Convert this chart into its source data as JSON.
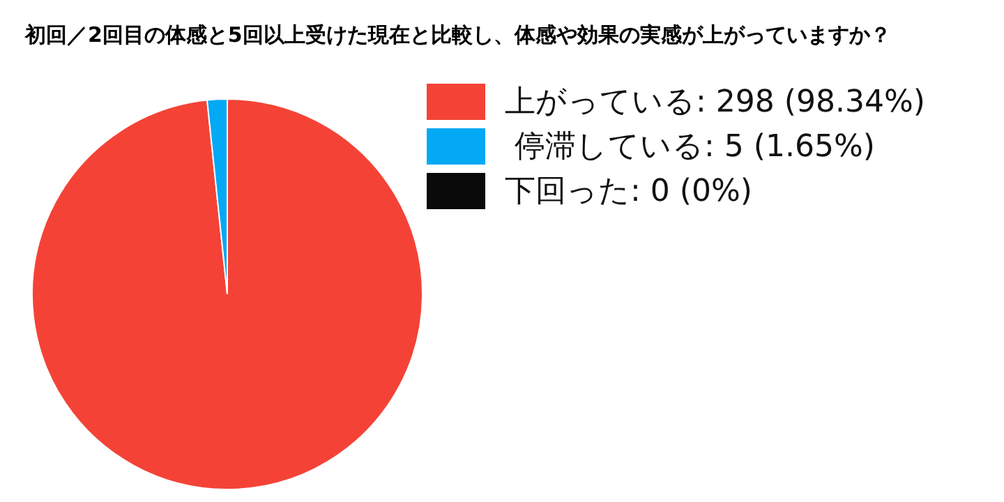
{
  "chart_data": {
    "type": "pie",
    "title": "初回／2回目の体感と5回以上受けた現在と比較し、体感や効果の実感が上がっていますか？",
    "categories": [
      "上がっている",
      " 停滞している",
      "下回った"
    ],
    "values": [
      298,
      5,
      0
    ],
    "value_labels": [
      "298 (98.34%)",
      "5 (1.65%)",
      "0 (0%)"
    ],
    "colors": [
      "#f44336",
      "#03a9f4",
      "#0a0a0a"
    ],
    "legend": "top right"
  }
}
